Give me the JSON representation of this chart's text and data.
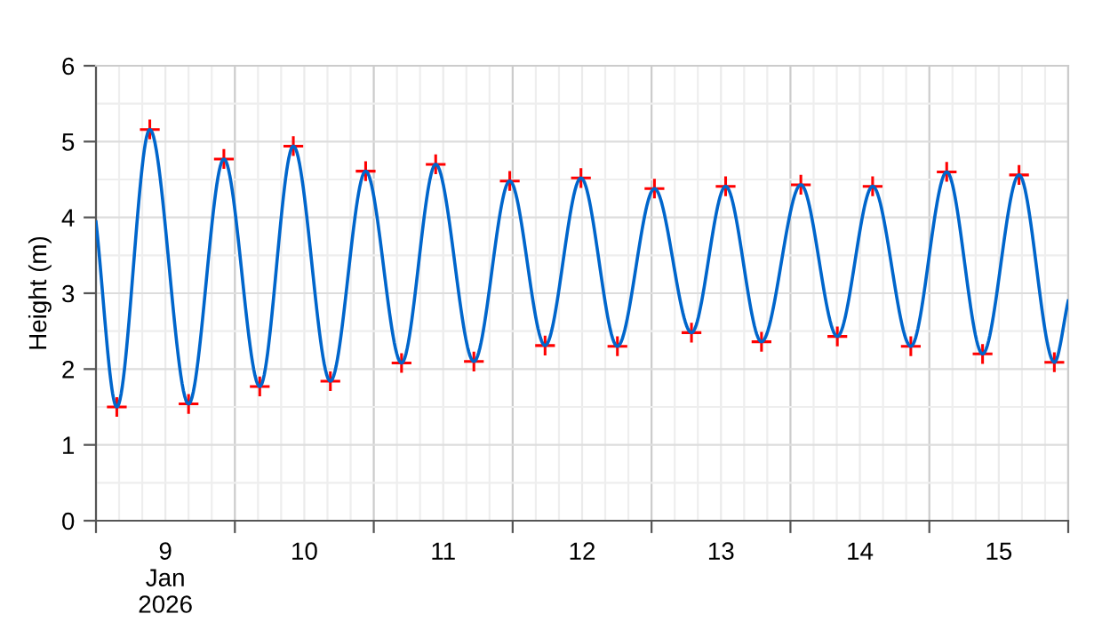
{
  "chart_data": {
    "type": "line",
    "ylabel": "Height (m)",
    "xlim": [
      "2026-01-09T00:00",
      "2026-01-16T00:00"
    ],
    "ylim": [
      0,
      6
    ],
    "yticks": [
      0,
      1,
      2,
      3,
      4,
      5,
      6
    ],
    "xticks": [
      {
        "value": "2026-01-09T00:00",
        "label": null
      },
      {
        "value": "2026-01-09T12:00",
        "label": "9\nJan\n2026"
      },
      {
        "value": "2026-01-10T00:00",
        "label": null
      },
      {
        "value": "2026-01-10T12:00",
        "label": "10"
      },
      {
        "value": "2026-01-11T00:00",
        "label": null
      },
      {
        "value": "2026-01-11T12:00",
        "label": "11"
      },
      {
        "value": "2026-01-12T00:00",
        "label": null
      },
      {
        "value": "2026-01-12T12:00",
        "label": "12"
      },
      {
        "value": "2026-01-13T00:00",
        "label": null
      },
      {
        "value": "2026-01-13T12:00",
        "label": "13"
      },
      {
        "value": "2026-01-14T00:00",
        "label": null
      },
      {
        "value": "2026-01-14T12:00",
        "label": "14"
      },
      {
        "value": "2026-01-15T00:00",
        "label": null
      },
      {
        "value": "2026-01-15T12:00",
        "label": "15"
      },
      {
        "value": "2026-01-16T00:00",
        "label": null
      }
    ],
    "grid": true,
    "legend": false,
    "series": [
      {
        "color": "#0066cc",
        "marker": "none",
        "line_style": "solid",
        "x": [
          "2026-01-09T00:00",
          "2026-01-09T03:36",
          "2026-01-09T09:18",
          "2026-01-09T16:00",
          "2026-01-09T22:06",
          "2026-01-10T04:18",
          "2026-01-10T10:06",
          "2026-01-10T16:30",
          "2026-01-10T22:36",
          "2026-01-11T04:48",
          "2026-01-11T10:42",
          "2026-01-11T17:18",
          "2026-01-11T23:30",
          "2026-01-12T05:36",
          "2026-01-12T11:48",
          "2026-01-12T18:06",
          "2026-01-13T00:30",
          "2026-01-13T06:54",
          "2026-01-13T12:48",
          "2026-01-13T19:00",
          "2026-01-14T01:48",
          "2026-01-14T08:06",
          "2026-01-14T14:12",
          "2026-01-14T20:48",
          "2026-01-15T03:00",
          "2026-01-15T09:12",
          "2026-01-15T15:30",
          "2026-01-15T21:36",
          "2026-01-16T00:00"
        ],
        "values": [
          3.94,
          1.5,
          5.16,
          1.54,
          4.77,
          1.77,
          4.94,
          1.84,
          4.61,
          2.08,
          4.7,
          2.1,
          4.48,
          2.31,
          4.52,
          2.3,
          4.38,
          2.48,
          4.41,
          2.36,
          4.43,
          2.43,
          4.41,
          2.3,
          4.6,
          2.2,
          4.56,
          2.09,
          2.9
        ]
      },
      {
        "type": "scatter",
        "color": "#ff0000",
        "marker": "cross",
        "x": [
          "2026-01-09T03:36",
          "2026-01-09T09:18",
          "2026-01-09T16:00",
          "2026-01-09T22:06",
          "2026-01-10T04:18",
          "2026-01-10T10:06",
          "2026-01-10T16:30",
          "2026-01-10T22:36",
          "2026-01-11T04:48",
          "2026-01-11T10:42",
          "2026-01-11T17:18",
          "2026-01-11T23:30",
          "2026-01-12T05:36",
          "2026-01-12T11:48",
          "2026-01-12T18:06",
          "2026-01-13T00:30",
          "2026-01-13T06:54",
          "2026-01-13T12:48",
          "2026-01-13T19:00",
          "2026-01-14T01:48",
          "2026-01-14T08:06",
          "2026-01-14T14:12",
          "2026-01-14T20:48",
          "2026-01-15T03:00",
          "2026-01-15T09:12",
          "2026-01-15T15:30",
          "2026-01-15T21:36"
        ],
        "values": [
          1.5,
          5.16,
          1.54,
          4.77,
          1.77,
          4.94,
          1.84,
          4.61,
          2.08,
          4.7,
          2.1,
          4.48,
          2.31,
          4.52,
          2.3,
          4.38,
          2.48,
          4.41,
          2.36,
          4.43,
          2.43,
          4.41,
          2.3,
          4.6,
          2.2,
          4.56,
          2.09
        ]
      }
    ]
  }
}
